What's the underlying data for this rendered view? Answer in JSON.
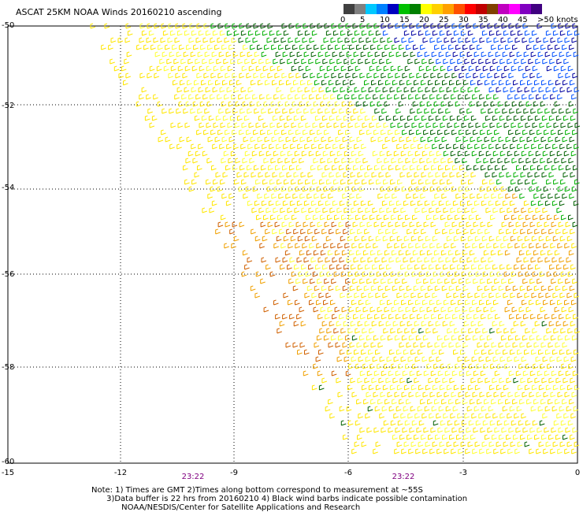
{
  "title": "ASCAT 25KM NOAA Winds 20160210 ascending",
  "legend": {
    "colors": [
      "#404040",
      "#808080",
      "#00c8ff",
      "#0080ff",
      "#0000c0",
      "#00c000",
      "#008000",
      "#ffff00",
      "#ffd000",
      "#ffa000",
      "#ff5000",
      "#ff0000",
      "#c00000",
      "#804000",
      "#c000c0",
      "#ff00ff",
      "#8000c0",
      "#400080"
    ],
    "labels": [
      "0",
      "5",
      "10",
      "15",
      "20",
      "25",
      "30",
      "35",
      "40",
      "45",
      ">50 knots"
    ]
  },
  "axes": {
    "y_labels": [
      "-50",
      "-52",
      "-54",
      "-56",
      "-58",
      "-60"
    ],
    "x_labels": [
      "-15",
      "-12",
      "-9",
      "-6",
      "-3",
      "0"
    ]
  },
  "times": [
    "23:22",
    "23:22"
  ],
  "note": {
    "line1": "Note: 1) Times are GMT 2)Times along bottom correspond to measurement at ~55S",
    "line2": "3)Data buffer is 22 hrs from 20160210 4) Black wind barbs indicate possible contamination",
    "line3": "NOAA/NESDIS/Center for Satellite Applications and Research"
  },
  "barb_colors": {
    "yellow": "#ffe600",
    "lightyellow": "#ffff33",
    "orange": "#f0a000",
    "darkorange": "#d06000",
    "green": "#00b000",
    "darkgreen": "#006000",
    "blue": "#0050ff",
    "navy": "#0000a0"
  }
}
